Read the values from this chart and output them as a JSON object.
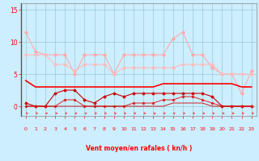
{
  "x": [
    0,
    1,
    2,
    3,
    4,
    5,
    6,
    7,
    8,
    9,
    10,
    11,
    12,
    13,
    14,
    15,
    16,
    17,
    18,
    19,
    20,
    21,
    22,
    23
  ],
  "line1": [
    11.5,
    8.5,
    8,
    8,
    8,
    5,
    8,
    8,
    8,
    5,
    8,
    8,
    8,
    8,
    8,
    10.5,
    11.5,
    8,
    8,
    6,
    5,
    5,
    2,
    5.5
  ],
  "line2": [
    8,
    8,
    8,
    6.5,
    6.5,
    5.5,
    6.5,
    6.5,
    6.5,
    5,
    6,
    6,
    6,
    6,
    6,
    6,
    6.5,
    6.5,
    6.5,
    6.5,
    5,
    5,
    5,
    5
  ],
  "line3": [
    4,
    3,
    3,
    3,
    3,
    3,
    3,
    3,
    3,
    3,
    3,
    3,
    3,
    3,
    3.5,
    3.5,
    3.5,
    3.5,
    3.5,
    3.5,
    3.5,
    3.5,
    3,
    3
  ],
  "line4": [
    0.5,
    0,
    0,
    2,
    2.5,
    2.5,
    1,
    0.5,
    1.5,
    2,
    1.5,
    2,
    2,
    2,
    2,
    2,
    2,
    2,
    2,
    1.5,
    0,
    0,
    0,
    0
  ],
  "line5": [
    0,
    0,
    0,
    0,
    1,
    1,
    0,
    0,
    0,
    0,
    0,
    0.5,
    0.5,
    0.5,
    1,
    1,
    1.5,
    1.5,
    1,
    0.5,
    0,
    0,
    0,
    0
  ],
  "line6": [
    0,
    0,
    0,
    0,
    0,
    0,
    0,
    0,
    0,
    0,
    0,
    0,
    0,
    0,
    0,
    0.5,
    0.5,
    0.5,
    0.5,
    0,
    0,
    0,
    0,
    0
  ],
  "xlabel": "Vent moyen/en rafales ( kn/h )",
  "yticks": [
    0,
    5,
    10,
    15
  ],
  "xticks": [
    0,
    1,
    2,
    3,
    4,
    5,
    6,
    7,
    8,
    9,
    10,
    11,
    12,
    13,
    14,
    15,
    16,
    17,
    18,
    19,
    20,
    21,
    22,
    23
  ],
  "ylim": [
    -1.5,
    16
  ],
  "xlim": [
    -0.5,
    23.5
  ],
  "bg_color": "#cceeff",
  "grid_color": "#99cccc",
  "color_line1": "#ffaaaa",
  "color_line2": "#ffbbbb",
  "color_line3": "#ff0000",
  "color_line4": "#cc0000",
  "color_line5": "#dd2222",
  "color_line6": "#cc0000",
  "arrow_color": "#ff2222"
}
